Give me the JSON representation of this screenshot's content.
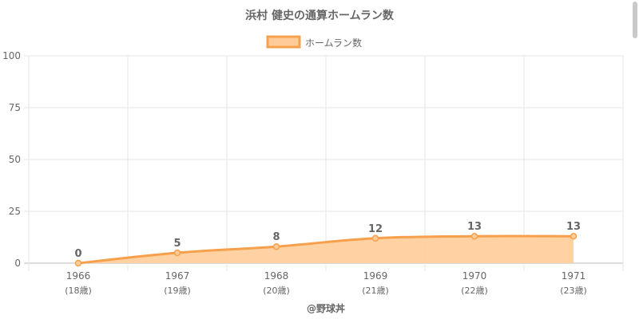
{
  "chart_data": {
    "type": "area",
    "title": "浜村 健史の通算ホームラン数",
    "legend": {
      "label": "ホームラン数",
      "position": "top"
    },
    "categories": [
      [
        "1966",
        "(18歳)"
      ],
      [
        "1967",
        "(19歳)"
      ],
      [
        "1968",
        "(20歳)"
      ],
      [
        "1969",
        "(21歳)"
      ],
      [
        "1970",
        "(22歳)"
      ],
      [
        "1971",
        "(23歳)"
      ]
    ],
    "series": [
      {
        "name": "ホームラン数",
        "values": [
          0,
          5,
          8,
          12,
          13,
          13
        ]
      }
    ],
    "ylim": [
      0,
      100
    ],
    "yticks": [
      0,
      25,
      50,
      75,
      100
    ],
    "grid": true,
    "colors": {
      "line": "#f7a04b",
      "fill": "#ffcc99",
      "grid": "#e6e6e6",
      "text": "#666666"
    },
    "credit": "@野球丼"
  }
}
